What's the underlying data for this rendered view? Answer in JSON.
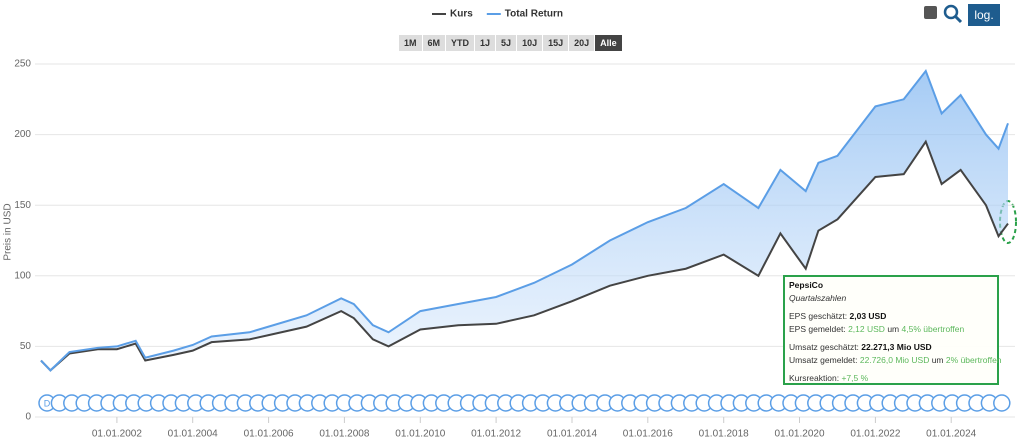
{
  "chart_data": {
    "type": "line",
    "y_label": "Preis in USD",
    "xlim": [
      "2000-01-01",
      "2025-07-01"
    ],
    "ylim": [
      0,
      250
    ],
    "yticks": [
      0,
      50,
      100,
      150,
      200,
      250
    ],
    "xticks": [
      {
        "value": "2002-01-01",
        "label": "01.01.2002"
      },
      {
        "value": "2004-01-01",
        "label": "01.01.2004"
      },
      {
        "value": "2006-01-01",
        "label": "01.01.2006"
      },
      {
        "value": "2008-01-01",
        "label": "01.01.2008"
      },
      {
        "value": "2010-01-01",
        "label": "01.01.2010"
      },
      {
        "value": "2012-01-01",
        "label": "01.01.2012"
      },
      {
        "value": "2014-01-01",
        "label": "01.01.2014"
      },
      {
        "value": "2016-01-01",
        "label": "01.01.2016"
      },
      {
        "value": "2018-01-01",
        "label": "01.01.2018"
      },
      {
        "value": "2020-01-01",
        "label": "01.01.2020"
      },
      {
        "value": "2022-01-01",
        "label": "01.01.2022"
      },
      {
        "value": "2024-01-01",
        "label": "01.01.2024"
      }
    ],
    "grid": true,
    "x": [
      "2000-01-01",
      "2000-04-01",
      "2000-10-01",
      "2001-07-01",
      "2002-01-01",
      "2002-07-01",
      "2002-10-01",
      "2003-07-01",
      "2004-01-01",
      "2004-07-01",
      "2005-07-01",
      "2006-01-01",
      "2007-01-01",
      "2007-12-01",
      "2008-04-01",
      "2008-10-01",
      "2009-03-01",
      "2010-01-01",
      "2011-01-01",
      "2012-01-01",
      "2013-01-01",
      "2014-01-01",
      "2015-01-01",
      "2016-01-01",
      "2017-01-01",
      "2018-01-01",
      "2018-12-01",
      "2019-07-01",
      "2020-03-01",
      "2020-07-01",
      "2021-01-01",
      "2022-01-01",
      "2022-10-01",
      "2023-05-01",
      "2023-10-01",
      "2024-04-01",
      "2024-12-01",
      "2025-04-01",
      "2025-07-01"
    ],
    "series": [
      {
        "name": "Kurs",
        "color": "#444444",
        "values": [
          40,
          33,
          45,
          48,
          48,
          52,
          40,
          44,
          47,
          53,
          55,
          58,
          64,
          75,
          70,
          55,
          50,
          62,
          65,
          66,
          72,
          82,
          93,
          100,
          105,
          115,
          100,
          130,
          105,
          132,
          140,
          170,
          172,
          195,
          165,
          175,
          150,
          128,
          137
        ]
      },
      {
        "name": "Total Return",
        "color": "#5b9ee6",
        "values": [
          40,
          33,
          46,
          49,
          50,
          54,
          42,
          47,
          51,
          57,
          60,
          64,
          72,
          84,
          80,
          65,
          60,
          75,
          80,
          85,
          95,
          108,
          125,
          138,
          148,
          165,
          148,
          175,
          160,
          180,
          185,
          220,
          225,
          245,
          215,
          228,
          200,
          190,
          208
        ]
      }
    ]
  },
  "range_buttons": [
    "1M",
    "6M",
    "YTD",
    "1J",
    "5J",
    "10J",
    "15J",
    "20J",
    "Alle"
  ],
  "log_button": "log.",
  "event_marker_label": "D",
  "tooltip": {
    "company": "PepsiCo",
    "subtitle": "Quartalszahlen",
    "eps_est_label": "EPS geschätzt:",
    "eps_est": "2,03 USD",
    "eps_rep_label": "EPS gemeldet:",
    "eps_rep": "2,12 USD",
    "eps_um": "um",
    "eps_pct": "4,5%",
    "eps_beat": "übertroffen",
    "rev_est_label": "Umsatz geschätzt:",
    "rev_est": "22.271,3 Mio USD",
    "rev_rep_label": "Umsatz gemeldet:",
    "rev_rep": "22.726,0 Mio USD",
    "rev_um": "um",
    "rev_pct": "2%",
    "rev_beat": "übertroffen",
    "reaction_label": "Kursreaktion:",
    "reaction": "+7,5 %"
  }
}
